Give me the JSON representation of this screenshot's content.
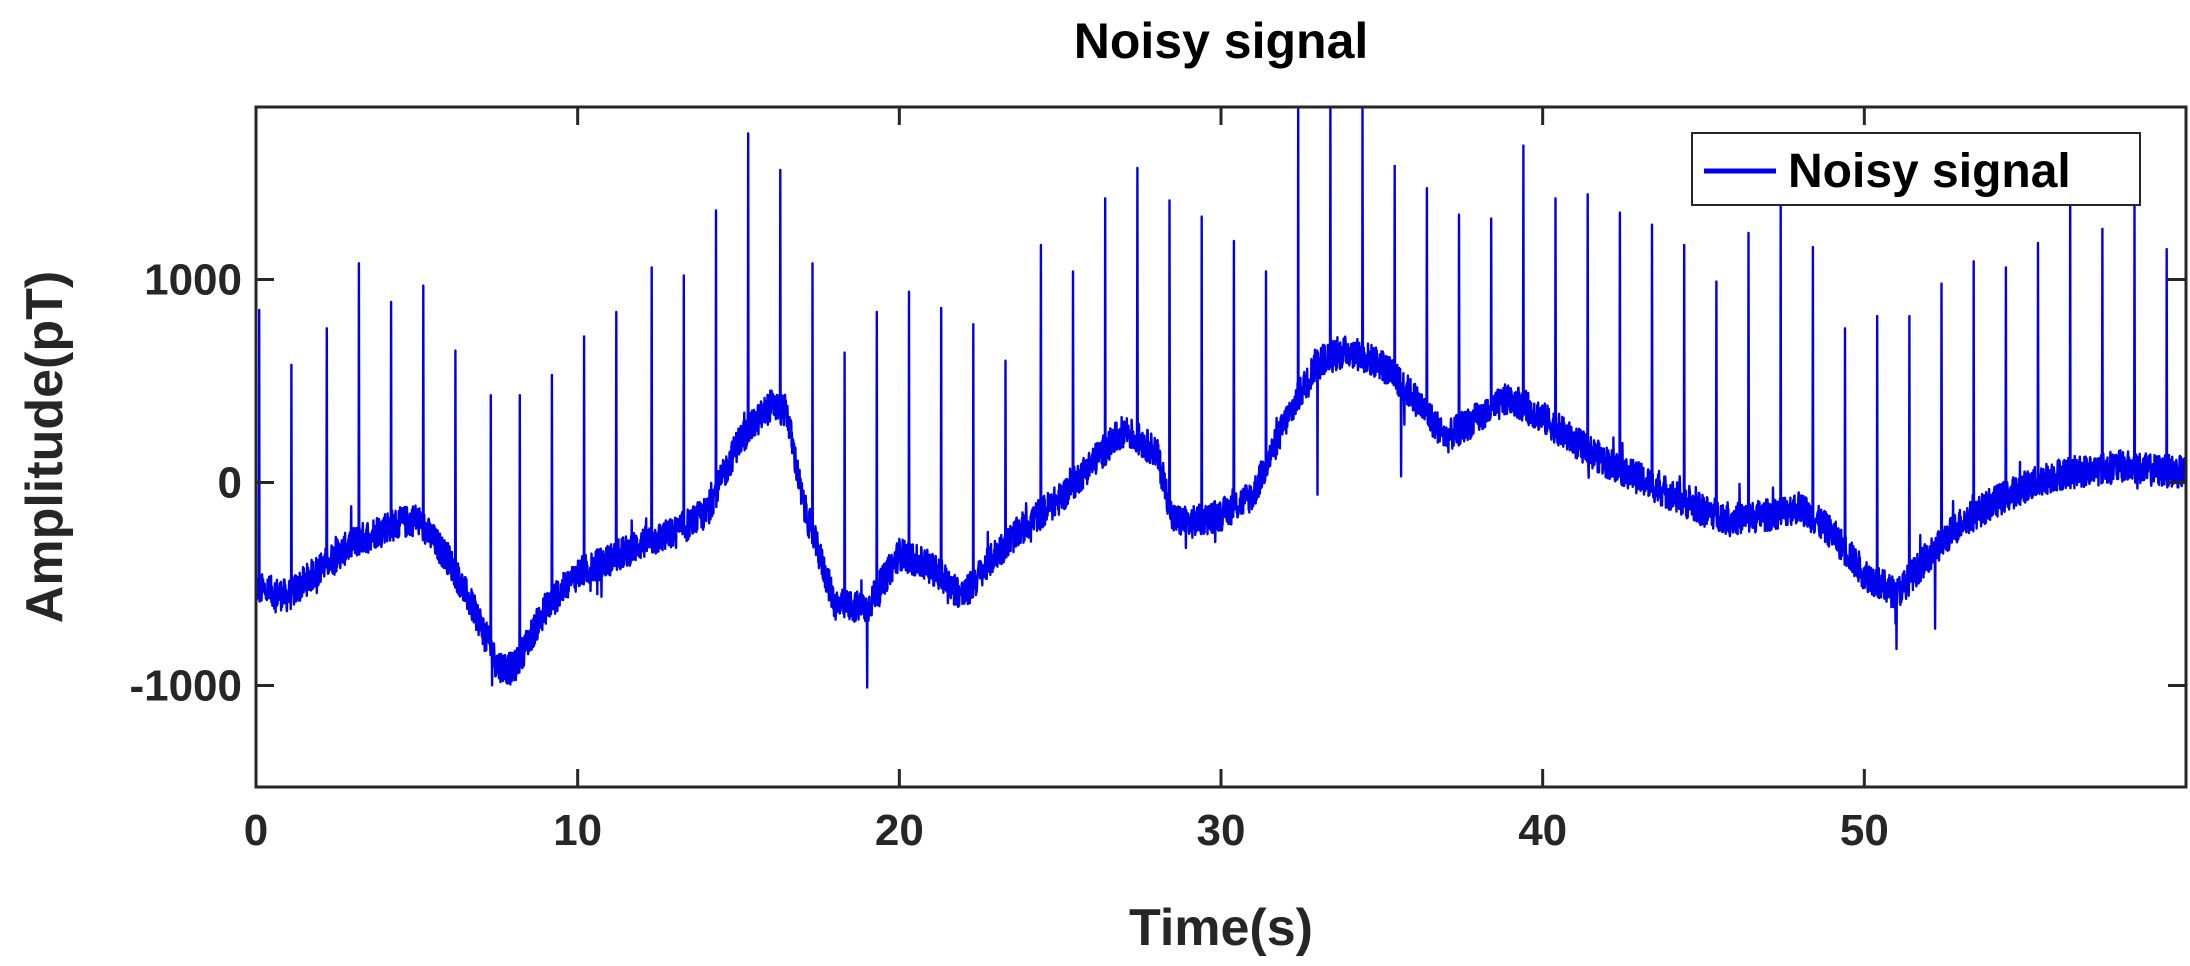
{
  "chart_data": {
    "type": "line",
    "title": "Noisy signal",
    "xlabel": "Time(s)",
    "ylabel": "Amplitude(pT)",
    "xlim": [
      0,
      60
    ],
    "ylim": [
      -1500,
      1850
    ],
    "xticks": [
      0,
      10,
      20,
      30,
      40,
      50
    ],
    "yticks": [
      -1000,
      0,
      1000
    ],
    "x_tick_labels": [
      "0",
      "10",
      "20",
      "30",
      "40",
      "50"
    ],
    "y_tick_labels": [
      "-1000",
      "0",
      "1000"
    ],
    "grid": false,
    "legend": {
      "position": "top-right",
      "entries": [
        "Noisy signal"
      ]
    },
    "series": [
      {
        "name": "Noisy signal",
        "color": "#0000ee",
        "noise_amplitude": 80,
        "baseline": {
          "x": [
            0,
            1,
            2,
            3,
            4,
            5,
            6,
            7,
            7.5,
            8,
            9,
            10,
            11,
            12,
            13,
            14,
            15,
            16,
            16.5,
            17,
            18,
            19,
            20,
            21,
            22,
            23,
            24,
            25,
            26,
            27,
            28,
            28.5,
            29,
            30,
            31,
            32,
            33,
            34,
            35,
            36,
            37,
            38,
            39,
            40,
            41,
            42,
            43,
            44,
            45,
            46,
            47,
            48,
            49,
            50,
            51,
            52,
            53,
            54,
            55,
            56,
            57,
            58,
            59,
            60
          ],
          "y": [
            -520,
            -560,
            -420,
            -300,
            -220,
            -180,
            -380,
            -700,
            -900,
            -920,
            -620,
            -450,
            -380,
            -300,
            -250,
            -150,
            200,
            380,
            350,
            -100,
            -600,
            -620,
            -350,
            -420,
            -560,
            -350,
            -200,
            -80,
            100,
            260,
            150,
            -180,
            -200,
            -160,
            -60,
            300,
            600,
            650,
            580,
            420,
            220,
            320,
            420,
            320,
            200,
            100,
            20,
            -60,
            -140,
            -180,
            -160,
            -120,
            -250,
            -450,
            -550,
            -360,
            -200,
            -100,
            -20,
            40,
            60,
            80,
            60,
            50
          ]
        },
        "spikes": [
          {
            "x": 0.1,
            "y": 850
          },
          {
            "x": 1.1,
            "y": 580
          },
          {
            "x": 2.2,
            "y": 760
          },
          {
            "x": 3.2,
            "y": 1080
          },
          {
            "x": 4.2,
            "y": 890
          },
          {
            "x": 5.2,
            "y": 970
          },
          {
            "x": 6.2,
            "y": 650
          },
          {
            "x": 7.3,
            "y": 430
          },
          {
            "x": 8.2,
            "y": 430
          },
          {
            "x": 9.2,
            "y": 530
          },
          {
            "x": 10.2,
            "y": 720
          },
          {
            "x": 11.2,
            "y": 840
          },
          {
            "x": 12.3,
            "y": 1060
          },
          {
            "x": 13.3,
            "y": 1020
          },
          {
            "x": 14.3,
            "y": 1340
          },
          {
            "x": 15.3,
            "y": 1720
          },
          {
            "x": 16.3,
            "y": 1540
          },
          {
            "x": 17.3,
            "y": 1080
          },
          {
            "x": 18.3,
            "y": 640
          },
          {
            "x": 19.3,
            "y": 840
          },
          {
            "x": 20.3,
            "y": 940
          },
          {
            "x": 21.3,
            "y": 860
          },
          {
            "x": 22.3,
            "y": 780
          },
          {
            "x": 23.3,
            "y": 600
          },
          {
            "x": 24.4,
            "y": 1170
          },
          {
            "x": 25.4,
            "y": 1040
          },
          {
            "x": 26.4,
            "y": 1400
          },
          {
            "x": 27.4,
            "y": 1550
          },
          {
            "x": 28.4,
            "y": 1390
          },
          {
            "x": 29.4,
            "y": 1310
          },
          {
            "x": 30.4,
            "y": 1190
          },
          {
            "x": 31.4,
            "y": 1040
          },
          {
            "x": 32.4,
            "y": 1850
          },
          {
            "x": 33.4,
            "y": 1880
          },
          {
            "x": 34.4,
            "y": 1850
          },
          {
            "x": 35.4,
            "y": 1560
          },
          {
            "x": 36.4,
            "y": 1450
          },
          {
            "x": 37.4,
            "y": 1320
          },
          {
            "x": 38.4,
            "y": 1300
          },
          {
            "x": 39.4,
            "y": 1660
          },
          {
            "x": 40.4,
            "y": 1400
          },
          {
            "x": 41.4,
            "y": 1420
          },
          {
            "x": 42.4,
            "y": 1330
          },
          {
            "x": 43.4,
            "y": 1270
          },
          {
            "x": 44.4,
            "y": 1170
          },
          {
            "x": 45.4,
            "y": 990
          },
          {
            "x": 46.4,
            "y": 1230
          },
          {
            "x": 47.4,
            "y": 1360
          },
          {
            "x": 48.4,
            "y": 1160
          },
          {
            "x": 49.4,
            "y": 760
          },
          {
            "x": 50.4,
            "y": 820
          },
          {
            "x": 51.4,
            "y": 820
          },
          {
            "x": 52.4,
            "y": 980
          },
          {
            "x": 53.4,
            "y": 1090
          },
          {
            "x": 54.4,
            "y": 1060
          },
          {
            "x": 55.4,
            "y": 1180
          },
          {
            "x": 56.4,
            "y": 1410
          },
          {
            "x": 57.4,
            "y": 1250
          },
          {
            "x": 58.4,
            "y": 1380
          },
          {
            "x": 59.4,
            "y": 1150
          }
        ],
        "dips": [
          {
            "x": 19.0,
            "y": -1010
          },
          {
            "x": 33.0,
            "y": -60
          },
          {
            "x": 35.6,
            "y": 30
          },
          {
            "x": 51.0,
            "y": -820
          },
          {
            "x": 52.2,
            "y": -720
          }
        ]
      }
    ]
  }
}
